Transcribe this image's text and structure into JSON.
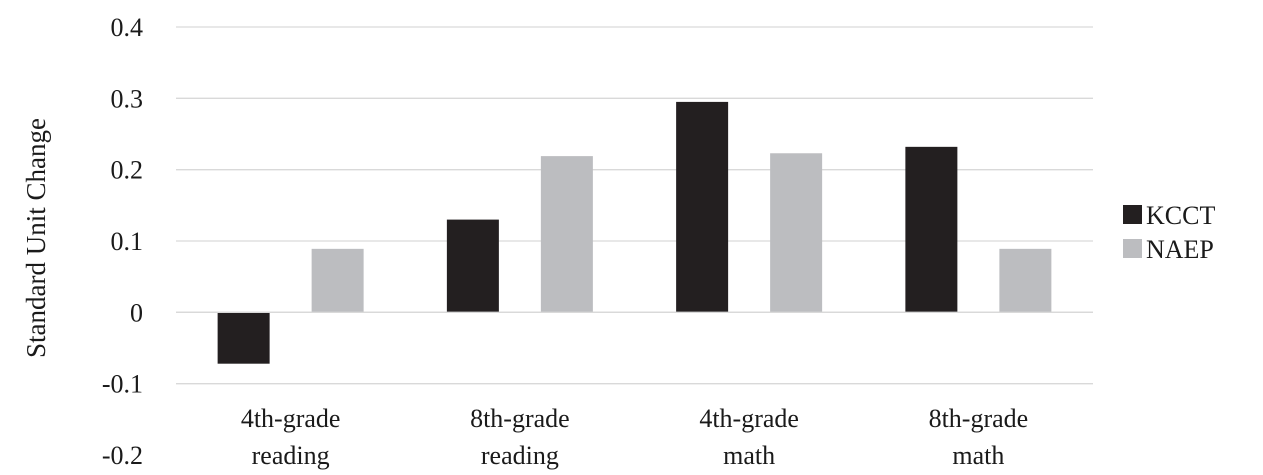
{
  "chart_data": {
    "type": "bar",
    "title": "",
    "xlabel": "",
    "ylabel": "Standard Unit Change",
    "ylim": [
      -0.2,
      0.4
    ],
    "yticks": [
      "0.4",
      "0.3",
      "0.2",
      "0.1",
      "0",
      "-0.1",
      "-0.2"
    ],
    "ytick_values": [
      0.4,
      0.3,
      0.2,
      0.1,
      0,
      -0.1,
      -0.2
    ],
    "grid": true,
    "legend_position": "right",
    "categories": [
      [
        "4th-grade",
        "reading"
      ],
      [
        "8th-grade",
        "reading"
      ],
      [
        "4th-grade",
        "math"
      ],
      [
        "8th-grade",
        "math"
      ]
    ],
    "series": [
      {
        "name": "KCCT",
        "color": "#231f20",
        "values": [
          -0.072,
          0.13,
          0.295,
          0.232
        ]
      },
      {
        "name": "NAEP",
        "color": "#bcbdc0",
        "values": [
          0.089,
          0.219,
          0.223,
          0.089
        ]
      }
    ]
  }
}
